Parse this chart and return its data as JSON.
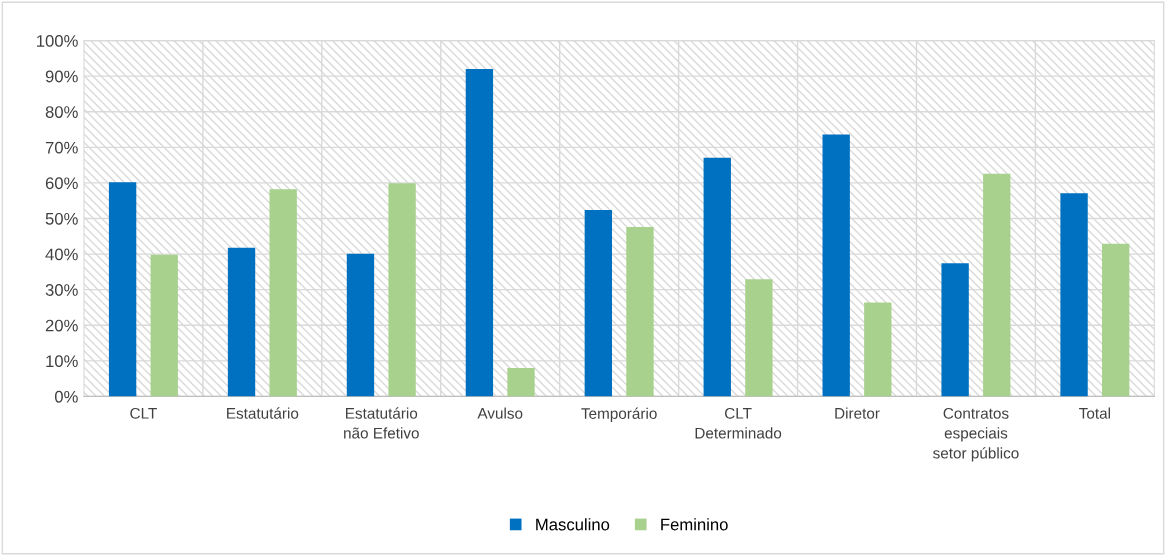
{
  "chart_data": {
    "type": "bar",
    "categories": [
      "CLT",
      "Estatutário",
      "Estatutário\nnão Efetivo",
      "Avulso",
      "Temporário",
      "CLT\nDeterminado",
      "Diretor",
      "Contratos\nespeciais\nsetor público",
      "Total"
    ],
    "series": [
      {
        "name": "Masculino",
        "color": "#0070c0",
        "values": [
          60.2,
          41.8,
          40.1,
          92.0,
          52.4,
          67.1,
          73.6,
          37.4,
          57.1
        ]
      },
      {
        "name": "Feminino",
        "color": "#a9d18e",
        "values": [
          39.8,
          58.2,
          59.9,
          8.0,
          47.6,
          32.9,
          26.4,
          62.6,
          42.9
        ]
      }
    ],
    "ylim": [
      0,
      100
    ],
    "yticks": [
      {
        "value": 0,
        "label": "0%"
      },
      {
        "value": 10,
        "label": "10%"
      },
      {
        "value": 20,
        "label": "20%"
      },
      {
        "value": 30,
        "label": "30%"
      },
      {
        "value": 40,
        "label": "40%"
      },
      {
        "value": 50,
        "label": "50%"
      },
      {
        "value": 60,
        "label": "60%"
      },
      {
        "value": 70,
        "label": "70%"
      },
      {
        "value": 80,
        "label": "80%"
      },
      {
        "value": 90,
        "label": "90%"
      },
      {
        "value": 100,
        "label": "100%"
      }
    ],
    "grid": true,
    "legend": "bottom"
  }
}
